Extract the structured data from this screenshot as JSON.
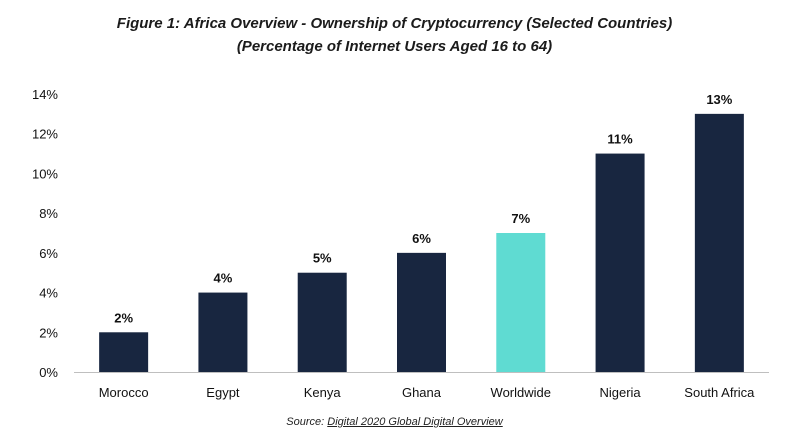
{
  "chart_data": {
    "type": "bar",
    "title": "Figure 1: Africa Overview - Ownership of Cryptocurrency (Selected Countries)",
    "subtitle": "(Percentage of Internet Users Aged 16 to 64)",
    "categories": [
      "Morocco",
      "Egypt",
      "Kenya",
      "Ghana",
      "Worldwide",
      "Nigeria",
      "South Africa"
    ],
    "values": [
      2,
      4,
      5,
      6,
      7,
      11,
      13
    ],
    "data_labels": [
      "2%",
      "4%",
      "5%",
      "6%",
      "7%",
      "11%",
      "13%"
    ],
    "ylim": [
      0,
      14
    ],
    "yticks": [
      0,
      2,
      4,
      6,
      8,
      10,
      12,
      14
    ],
    "ytick_labels": [
      "0%",
      "2%",
      "4%",
      "6%",
      "8%",
      "10%",
      "12%",
      "14%"
    ],
    "xlabel": "",
    "ylabel": "",
    "grid": false,
    "colors": {
      "default": "#182640",
      "highlight": "#5fdbd2"
    },
    "highlight_category": "Worldwide"
  },
  "source": {
    "prefix": "Source: ",
    "link_text": "Digital 2020 Global Digital Overview"
  }
}
